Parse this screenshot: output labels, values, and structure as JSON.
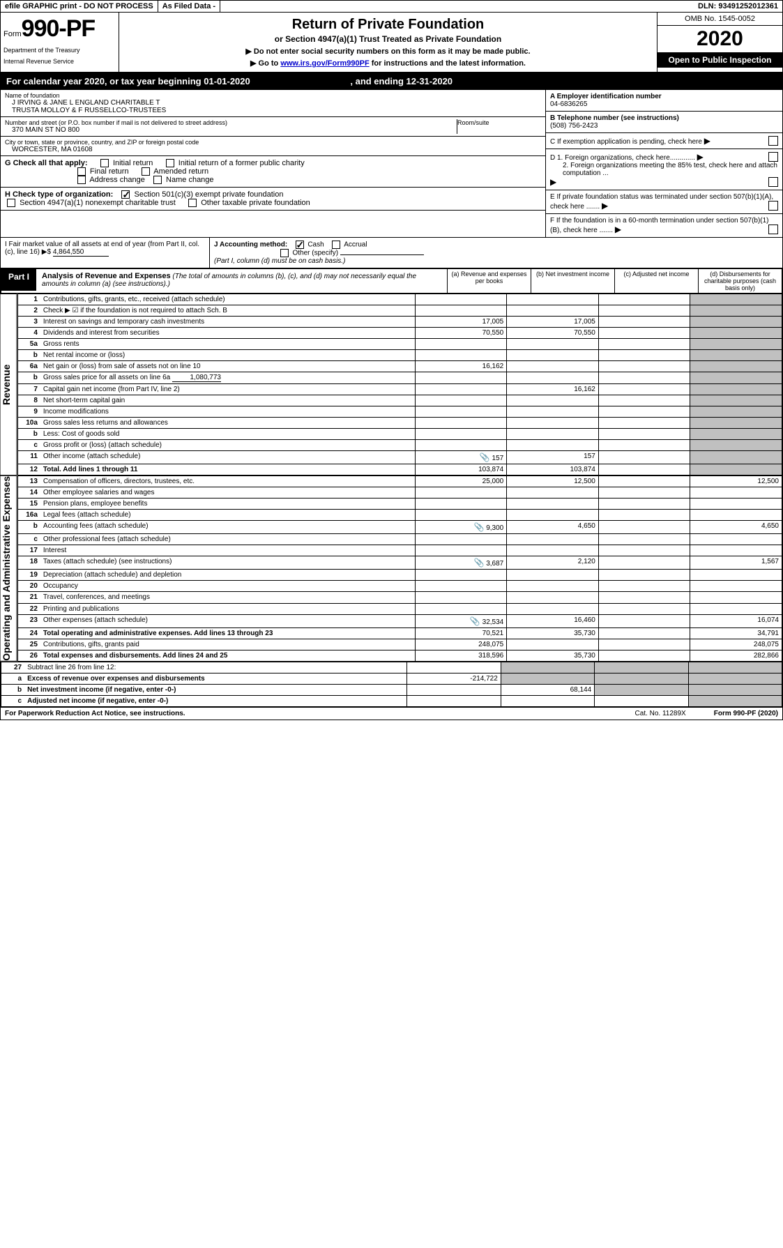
{
  "top": {
    "efile": "efile GRAPHIC print - DO NOT PROCESS",
    "asfiled": "As Filed Data -",
    "dln": "DLN: 93491252012361"
  },
  "header": {
    "form_prefix": "Form",
    "form_num": "990-PF",
    "dept1": "Department of the Treasury",
    "dept2": "Internal Revenue Service",
    "title": "Return of Private Foundation",
    "subtitle": "or Section 4947(a)(1) Trust Treated as Private Foundation",
    "sub2a": "▶ Do not enter social security numbers on this form as it may be made public.",
    "sub2b_pre": "▶ Go to ",
    "sub2b_link": "www.irs.gov/Form990PF",
    "sub2b_post": " for instructions and the latest information.",
    "omb": "OMB No. 1545-0052",
    "year": "2020",
    "open_pub": "Open to Public Inspection"
  },
  "cal": {
    "text_a": "For calendar year 2020, or tax year beginning ",
    "begin": "01-01-2020",
    "text_b": " , and ending ",
    "end": "12-31-2020"
  },
  "id": {
    "name_lbl": "Name of foundation",
    "name1": "J IRVING & JANE L ENGLAND CHARITABLE T",
    "name2": "TRUSTA MOLLOY & F RUSSELLCO-TRUSTEES",
    "addr_lbl": "Number and street (or P.O. box number if mail is not delivered to street address)",
    "addr": "370 MAIN ST NO 800",
    "room_lbl": "Room/suite",
    "city_lbl": "City or town, state or province, country, and ZIP or foreign postal code",
    "city": "WORCESTER, MA  01608",
    "ein_lbl": "A Employer identification number",
    "ein": "04-6836265",
    "tel_lbl": "B Telephone number (see instructions)",
    "tel": "(508) 756-2423",
    "c_lbl": "C If exemption application is pending, check here",
    "d1": "D 1. Foreign organizations, check here.............",
    "d2": "2. Foreign organizations meeting the 85% test, check here and attach computation ...",
    "e": "E  If private foundation status was terminated under section 507(b)(1)(A), check here .......",
    "f": "F  If the foundation is in a 60-month termination under section 507(b)(1)(B), check here ......."
  },
  "g": {
    "lbl": "G Check all that apply:",
    "o1": "Initial return",
    "o2": "Initial return of a former public charity",
    "o3": "Final return",
    "o4": "Amended return",
    "o5": "Address change",
    "o6": "Name change"
  },
  "h": {
    "lbl": "H Check type of organization:",
    "o1": "Section 501(c)(3) exempt private foundation",
    "o2": "Section 4947(a)(1) nonexempt charitable trust",
    "o3": "Other taxable private foundation"
  },
  "i": {
    "lbl": "I Fair market value of all assets at end of year (from Part II, col. (c), line 16) ▶$ ",
    "val": "4,864,550"
  },
  "j": {
    "lbl": "J Accounting method:",
    "o1": "Cash",
    "o2": "Accrual",
    "o3": "Other (specify)",
    "note": "(Part I, column (d) must be on cash basis.)"
  },
  "part1": {
    "label": "Part I",
    "title": "Analysis of Revenue and Expenses",
    "desc": " (The total of amounts in columns (b), (c), and (d) may not necessarily equal the amounts in column (a) (see instructions).)",
    "col_a": "(a) Revenue and expenses per books",
    "col_b": "(b) Net investment income",
    "col_c": "(c) Adjusted net income",
    "col_d": "(d) Disbursements for charitable purposes (cash basis only)"
  },
  "side": {
    "rev": "Revenue",
    "exp": "Operating and Administrative Expenses"
  },
  "rows": {
    "r1": {
      "n": "1",
      "d": "Contributions, gifts, grants, etc., received (attach schedule)"
    },
    "r2": {
      "n": "2",
      "d": "Check ▶ ☑ if the foundation is not required to attach Sch. B"
    },
    "r3": {
      "n": "3",
      "d": "Interest on savings and temporary cash investments",
      "a": "17,005",
      "b": "17,005"
    },
    "r4": {
      "n": "4",
      "d": "Dividends and interest from securities",
      "a": "70,550",
      "b": "70,550"
    },
    "r5a": {
      "n": "5a",
      "d": "Gross rents"
    },
    "r5b": {
      "n": "b",
      "d": "Net rental income or (loss)"
    },
    "r6a": {
      "n": "6a",
      "d": "Net gain or (loss) from sale of assets not on line 10",
      "a": "16,162"
    },
    "r6b": {
      "n": "b",
      "d": "Gross sales price for all assets on line 6a",
      "v": "1,080,773"
    },
    "r7": {
      "n": "7",
      "d": "Capital gain net income (from Part IV, line 2)",
      "b": "16,162"
    },
    "r8": {
      "n": "8",
      "d": "Net short-term capital gain"
    },
    "r9": {
      "n": "9",
      "d": "Income modifications"
    },
    "r10a": {
      "n": "10a",
      "d": "Gross sales less returns and allowances"
    },
    "r10b": {
      "n": "b",
      "d": "Less: Cost of goods sold"
    },
    "r10c": {
      "n": "c",
      "d": "Gross profit or (loss) (attach schedule)"
    },
    "r11": {
      "n": "11",
      "d": "Other income (attach schedule)",
      "a": "157",
      "b": "157",
      "icon": true
    },
    "r12": {
      "n": "12",
      "d": "Total. Add lines 1 through 11",
      "a": "103,874",
      "b": "103,874",
      "bold": true
    },
    "r13": {
      "n": "13",
      "d": "Compensation of officers, directors, trustees, etc.",
      "a": "25,000",
      "b": "12,500",
      "dd": "12,500"
    },
    "r14": {
      "n": "14",
      "d": "Other employee salaries and wages"
    },
    "r15": {
      "n": "15",
      "d": "Pension plans, employee benefits"
    },
    "r16a": {
      "n": "16a",
      "d": "Legal fees (attach schedule)"
    },
    "r16b": {
      "n": "b",
      "d": "Accounting fees (attach schedule)",
      "a": "9,300",
      "b": "4,650",
      "dd": "4,650",
      "icon": true
    },
    "r16c": {
      "n": "c",
      "d": "Other professional fees (attach schedule)"
    },
    "r17": {
      "n": "17",
      "d": "Interest"
    },
    "r18": {
      "n": "18",
      "d": "Taxes (attach schedule) (see instructions)",
      "a": "3,687",
      "b": "2,120",
      "dd": "1,567",
      "icon": true
    },
    "r19": {
      "n": "19",
      "d": "Depreciation (attach schedule) and depletion"
    },
    "r20": {
      "n": "20",
      "d": "Occupancy"
    },
    "r21": {
      "n": "21",
      "d": "Travel, conferences, and meetings"
    },
    "r22": {
      "n": "22",
      "d": "Printing and publications"
    },
    "r23": {
      "n": "23",
      "d": "Other expenses (attach schedule)",
      "a": "32,534",
      "b": "16,460",
      "dd": "16,074",
      "icon": true
    },
    "r24": {
      "n": "24",
      "d": "Total operating and administrative expenses. Add lines 13 through 23",
      "a": "70,521",
      "b": "35,730",
      "dd": "34,791",
      "bold": true
    },
    "r25": {
      "n": "25",
      "d": "Contributions, gifts, grants paid",
      "a": "248,075",
      "dd": "248,075"
    },
    "r26": {
      "n": "26",
      "d": "Total expenses and disbursements. Add lines 24 and 25",
      "a": "318,596",
      "b": "35,730",
      "dd": "282,866",
      "bold": true
    },
    "r27": {
      "n": "27",
      "d": "Subtract line 26 from line 12:"
    },
    "r27a": {
      "n": "a",
      "d": "Excess of revenue over expenses and disbursements",
      "a": "-214,722",
      "bold": true
    },
    "r27b": {
      "n": "b",
      "d": "Net investment income (if negative, enter -0-)",
      "b": "68,144",
      "bold": true
    },
    "r27c": {
      "n": "c",
      "d": "Adjusted net income (if negative, enter -0-)",
      "bold": true
    }
  },
  "footer": {
    "left": "For Paperwork Reduction Act Notice, see instructions.",
    "mid": "Cat. No. 11289X",
    "right": "Form 990-PF (2020)"
  }
}
